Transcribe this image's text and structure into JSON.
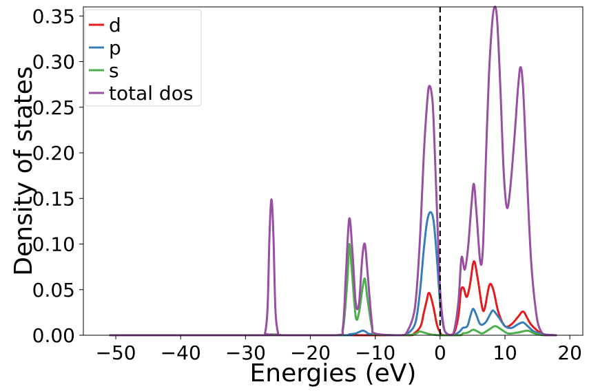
{
  "chart_data": {
    "type": "line",
    "xlabel": "Energies (eV)",
    "ylabel": "Density of states",
    "xlim": [
      -55,
      22
    ],
    "ylim": [
      0,
      0.36
    ],
    "xticks": [
      -50,
      -40,
      -30,
      -20,
      -10,
      0,
      10,
      20
    ],
    "xtick_labels": [
      "−50",
      "−40",
      "−30",
      "−20",
      "−10",
      "0",
      "10",
      "20"
    ],
    "yticks": [
      0.0,
      0.05,
      0.1,
      0.15,
      0.2,
      0.25,
      0.3,
      0.35
    ],
    "ytick_labels": [
      "0.00",
      "0.05",
      "0.10",
      "0.15",
      "0.20",
      "0.25",
      "0.30",
      "0.35"
    ],
    "fermi_level": 0,
    "legend_position": "top-left",
    "series": [
      {
        "name": "d",
        "color": "#e41a1c",
        "points": [
          [
            -51,
            0
          ],
          [
            -26,
            0
          ],
          [
            -14,
            0
          ],
          [
            -12,
            0
          ],
          [
            -5,
            0
          ],
          [
            -4,
            0.002
          ],
          [
            -3,
            0.01
          ],
          [
            -2.5,
            0.025
          ],
          [
            -2,
            0.04
          ],
          [
            -1.8,
            0.046
          ],
          [
            -1.5,
            0.044
          ],
          [
            -1,
            0.03
          ],
          [
            -0.5,
            0.012
          ],
          [
            0,
            0.003
          ],
          [
            0.5,
            0
          ],
          [
            2,
            0.001
          ],
          [
            2.8,
            0.02
          ],
          [
            3.2,
            0.048
          ],
          [
            3.6,
            0.052
          ],
          [
            4.1,
            0.042
          ],
          [
            4.6,
            0.055
          ],
          [
            5.2,
            0.081
          ],
          [
            5.8,
            0.062
          ],
          [
            6.5,
            0.03
          ],
          [
            6.9,
            0.03
          ],
          [
            7.6,
            0.055
          ],
          [
            8.2,
            0.05
          ],
          [
            9,
            0.025
          ],
          [
            10,
            0.01
          ],
          [
            11,
            0.012
          ],
          [
            12,
            0.02
          ],
          [
            12.8,
            0.026
          ],
          [
            13.5,
            0.018
          ],
          [
            14,
            0.012
          ],
          [
            15,
            0.005
          ],
          [
            16,
            0.001
          ],
          [
            18,
            0
          ]
        ]
      },
      {
        "name": "p",
        "color": "#377eb8",
        "points": [
          [
            -51,
            0
          ],
          [
            -26,
            0
          ],
          [
            -14.5,
            0
          ],
          [
            -14,
            0.001
          ],
          [
            -13,
            0.002
          ],
          [
            -12,
            0.005
          ],
          [
            -11.5,
            0.004
          ],
          [
            -10.5,
            0.001
          ],
          [
            -6,
            0
          ],
          [
            -5,
            0.002
          ],
          [
            -4,
            0.01
          ],
          [
            -3.5,
            0.025
          ],
          [
            -3,
            0.055
          ],
          [
            -2.5,
            0.095
          ],
          [
            -2,
            0.125
          ],
          [
            -1.5,
            0.135
          ],
          [
            -1,
            0.125
          ],
          [
            -0.5,
            0.085
          ],
          [
            0,
            0.035
          ],
          [
            0.5,
            0.01
          ],
          [
            1,
            0.002
          ],
          [
            2,
            0
          ],
          [
            3,
            0.004
          ],
          [
            3.5,
            0.008
          ],
          [
            4.2,
            0.01
          ],
          [
            4.7,
            0.022
          ],
          [
            5.1,
            0.029
          ],
          [
            5.6,
            0.022
          ],
          [
            6.2,
            0.012
          ],
          [
            7,
            0.014
          ],
          [
            7.8,
            0.024
          ],
          [
            8.2,
            0.027
          ],
          [
            9,
            0.02
          ],
          [
            10,
            0.01
          ],
          [
            11,
            0.008
          ],
          [
            12,
            0.012
          ],
          [
            12.8,
            0.014
          ],
          [
            13.5,
            0.01
          ],
          [
            14.5,
            0.004
          ],
          [
            16,
            0.001
          ],
          [
            18,
            0
          ]
        ]
      },
      {
        "name": "s",
        "color": "#4daf4a",
        "points": [
          [
            -51,
            0
          ],
          [
            -26.5,
            0
          ],
          [
            -26,
            0.001
          ],
          [
            -25.5,
            0
          ],
          [
            -16,
            0
          ],
          [
            -15,
            0.005
          ],
          [
            -14.3,
            0.06
          ],
          [
            -14,
            0.1
          ],
          [
            -13.6,
            0.07
          ],
          [
            -13,
            0.02
          ],
          [
            -12.5,
            0.025
          ],
          [
            -12,
            0.05
          ],
          [
            -11.6,
            0.062
          ],
          [
            -11.2,
            0.04
          ],
          [
            -10.5,
            0.008
          ],
          [
            -10,
            0.001
          ],
          [
            -6,
            0
          ],
          [
            -4,
            0.001
          ],
          [
            -3.2,
            0.004
          ],
          [
            -2.5,
            0.003
          ],
          [
            -1.5,
            0.001
          ],
          [
            0,
            0
          ],
          [
            3,
            0
          ],
          [
            3.5,
            0.002
          ],
          [
            4.3,
            0.003
          ],
          [
            5.1,
            0.006
          ],
          [
            5.8,
            0.004
          ],
          [
            6.5,
            0.002
          ],
          [
            7.5,
            0.006
          ],
          [
            8.5,
            0.01
          ],
          [
            9.5,
            0.006
          ],
          [
            10.5,
            0.002
          ],
          [
            12,
            0.003
          ],
          [
            13.5,
            0.005
          ],
          [
            14.5,
            0.002
          ],
          [
            16,
            0
          ],
          [
            18,
            0
          ]
        ]
      },
      {
        "name": "total dos",
        "color": "#984ea3",
        "points": [
          [
            -51,
            0
          ],
          [
            -27.5,
            0
          ],
          [
            -27,
            0.002
          ],
          [
            -26.6,
            0.03
          ],
          [
            -26.3,
            0.11
          ],
          [
            -26,
            0.149
          ],
          [
            -25.7,
            0.11
          ],
          [
            -25.4,
            0.03
          ],
          [
            -25,
            0.003
          ],
          [
            -24.5,
            0
          ],
          [
            -16,
            0
          ],
          [
            -15,
            0.008
          ],
          [
            -14.5,
            0.07
          ],
          [
            -14,
            0.128
          ],
          [
            -13.5,
            0.09
          ],
          [
            -13,
            0.035
          ],
          [
            -12.5,
            0.035
          ],
          [
            -12,
            0.085
          ],
          [
            -11.6,
            0.1
          ],
          [
            -11.2,
            0.07
          ],
          [
            -10.5,
            0.012
          ],
          [
            -10,
            0.002
          ],
          [
            -6,
            0
          ],
          [
            -5,
            0.005
          ],
          [
            -4,
            0.025
          ],
          [
            -3.5,
            0.06
          ],
          [
            -3,
            0.12
          ],
          [
            -2.5,
            0.2
          ],
          [
            -2,
            0.255
          ],
          [
            -1.7,
            0.273
          ],
          [
            -1.3,
            0.265
          ],
          [
            -1,
            0.235
          ],
          [
            -0.5,
            0.14
          ],
          [
            0,
            0.05
          ],
          [
            0.5,
            0.012
          ],
          [
            1,
            0.002
          ],
          [
            2,
            0.001
          ],
          [
            2.8,
            0.035
          ],
          [
            3.3,
            0.085
          ],
          [
            3.8,
            0.072
          ],
          [
            4.3,
            0.095
          ],
          [
            4.8,
            0.14
          ],
          [
            5.2,
            0.166
          ],
          [
            5.6,
            0.135
          ],
          [
            6.2,
            0.08
          ],
          [
            6.6,
            0.095
          ],
          [
            7,
            0.18
          ],
          [
            7.5,
            0.28
          ],
          [
            8,
            0.34
          ],
          [
            8.4,
            0.36
          ],
          [
            8.8,
            0.345
          ],
          [
            9.3,
            0.27
          ],
          [
            9.8,
            0.18
          ],
          [
            10.3,
            0.14
          ],
          [
            10.8,
            0.16
          ],
          [
            11.5,
            0.22
          ],
          [
            12,
            0.27
          ],
          [
            12.4,
            0.294
          ],
          [
            12.8,
            0.27
          ],
          [
            13.3,
            0.19
          ],
          [
            14,
            0.085
          ],
          [
            14.8,
            0.025
          ],
          [
            15.5,
            0.005
          ],
          [
            16.5,
            0
          ],
          [
            18,
            0
          ]
        ]
      }
    ]
  }
}
